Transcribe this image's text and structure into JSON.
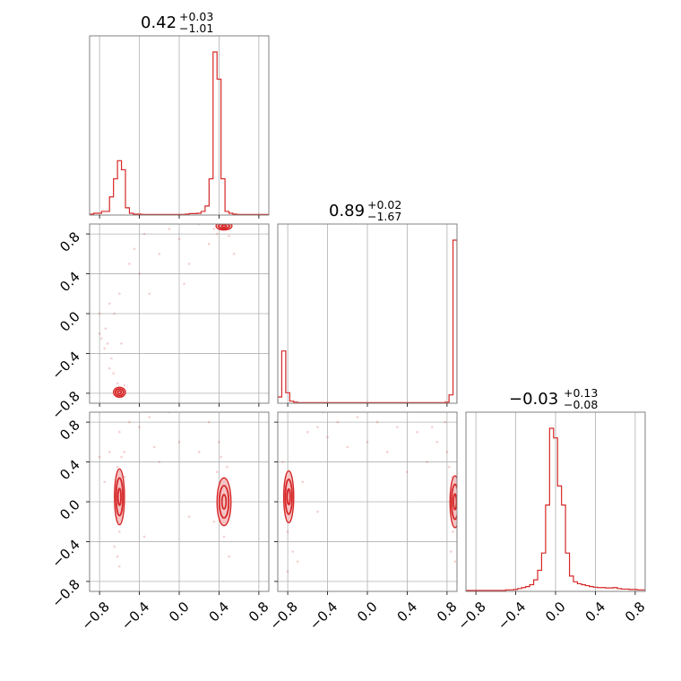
{
  "colors": {
    "accent": "#d62728",
    "contour_fill": "#f4c4c4",
    "grid": "#b0b0b0",
    "frame": "#808080"
  },
  "chart_data": {
    "type": "corner",
    "range": [
      -0.9,
      0.9
    ],
    "ticks": [
      -0.8,
      -0.4,
      0.0,
      0.4,
      0.8
    ],
    "tick_labels": [
      "−0.8",
      "−0.4",
      "0.0",
      "0.4",
      "0.8"
    ],
    "grid": true,
    "parameters": [
      {
        "index": 0,
        "median": "0.42",
        "plus": "+0.03",
        "minus": "−1.01"
      },
      {
        "index": 1,
        "median": "0.89",
        "plus": "+0.02",
        "minus": "−1.67"
      },
      {
        "index": 2,
        "median": "−0.03",
        "plus": "+0.13",
        "minus": "−0.08"
      }
    ],
    "histograms": [
      {
        "param": 0,
        "bin_edges": [
          -0.9,
          -0.86,
          -0.82,
          -0.78,
          -0.74,
          -0.7,
          -0.66,
          -0.62,
          -0.58,
          -0.54,
          -0.5,
          -0.46,
          -0.42,
          -0.38,
          -0.34,
          -0.3,
          -0.26,
          -0.22,
          -0.18,
          -0.14,
          -0.1,
          -0.06,
          -0.02,
          0.02,
          0.06,
          0.1,
          0.14,
          0.18,
          0.22,
          0.26,
          0.3,
          0.34,
          0.38,
          0.42,
          0.46,
          0.5,
          0.54,
          0.58,
          0.62,
          0.66,
          0.7,
          0.74,
          0.78,
          0.82,
          0.86,
          0.9
        ],
        "counts": [
          0.005,
          0.01,
          0.01,
          0.02,
          0.02,
          0.1,
          0.2,
          0.3,
          0.25,
          0.04,
          0.01,
          0.005,
          0.005,
          0.003,
          0.003,
          0.003,
          0.003,
          0.003,
          0.003,
          0.003,
          0.003,
          0.003,
          0.003,
          0.003,
          0.005,
          0.008,
          0.008,
          0.01,
          0.02,
          0.05,
          0.2,
          0.9,
          0.75,
          0.2,
          0.02,
          0.01,
          0.005,
          0.003,
          0.003,
          0.003,
          0.003,
          0.003,
          0.003,
          0.003,
          0.003
        ]
      },
      {
        "param": 1,
        "bin_edges": [
          -0.9,
          -0.86,
          -0.82,
          -0.78,
          -0.74,
          -0.7,
          -0.66,
          -0.62,
          -0.58,
          -0.54,
          -0.5,
          -0.46,
          -0.42,
          -0.38,
          -0.34,
          -0.3,
          -0.26,
          -0.22,
          -0.18,
          -0.14,
          -0.1,
          -0.06,
          -0.02,
          0.02,
          0.06,
          0.1,
          0.14,
          0.18,
          0.22,
          0.26,
          0.3,
          0.34,
          0.38,
          0.42,
          0.46,
          0.5,
          0.54,
          0.58,
          0.62,
          0.66,
          0.7,
          0.74,
          0.78,
          0.82,
          0.86,
          0.9
        ],
        "counts": [
          0.03,
          0.25,
          0.05,
          0.01,
          0.005,
          0.003,
          0.003,
          0.003,
          0.003,
          0.003,
          0.003,
          0.003,
          0.003,
          0.003,
          0.003,
          0.003,
          0.003,
          0.003,
          0.003,
          0.003,
          0.003,
          0.003,
          0.003,
          0.003,
          0.003,
          0.003,
          0.003,
          0.003,
          0.003,
          0.003,
          0.003,
          0.003,
          0.003,
          0.003,
          0.003,
          0.003,
          0.003,
          0.003,
          0.003,
          0.003,
          0.003,
          0.003,
          0.005,
          0.04,
          0.78
        ]
      },
      {
        "param": 2,
        "bin_edges": [
          -0.9,
          -0.86,
          -0.82,
          -0.78,
          -0.74,
          -0.7,
          -0.66,
          -0.62,
          -0.58,
          -0.54,
          -0.5,
          -0.46,
          -0.42,
          -0.38,
          -0.34,
          -0.3,
          -0.26,
          -0.22,
          -0.18,
          -0.14,
          -0.1,
          -0.06,
          -0.02,
          0.02,
          0.06,
          0.1,
          0.14,
          0.18,
          0.22,
          0.26,
          0.3,
          0.34,
          0.38,
          0.42,
          0.46,
          0.5,
          0.54,
          0.58,
          0.62,
          0.66,
          0.7,
          0.74,
          0.78,
          0.82,
          0.86,
          0.9
        ],
        "counts": [
          0.005,
          0.005,
          0.005,
          0.005,
          0.005,
          0.005,
          0.005,
          0.005,
          0.005,
          0.005,
          0.008,
          0.008,
          0.01,
          0.015,
          0.02,
          0.025,
          0.035,
          0.06,
          0.11,
          0.2,
          0.45,
          0.85,
          0.8,
          0.55,
          0.45,
          0.2,
          0.08,
          0.05,
          0.04,
          0.035,
          0.03,
          0.025,
          0.022,
          0.02,
          0.02,
          0.018,
          0.018,
          0.02,
          0.015,
          0.012,
          0.012,
          0.01,
          0.01,
          0.008,
          0.008
        ]
      }
    ],
    "pairs": [
      {
        "x_param": 0,
        "y_param": 1,
        "modes": [
          {
            "cx": 0.45,
            "cy": 0.88,
            "sx": 0.04,
            "sy": 0.02
          },
          {
            "cx": -0.6,
            "cy": -0.79,
            "sx": 0.03,
            "sy": 0.025
          }
        ],
        "samples": [
          [
            -0.78,
            -0.25
          ],
          [
            -0.7,
            -0.55
          ],
          [
            -0.72,
            -0.3
          ],
          [
            -0.66,
            -0.6
          ],
          [
            -0.74,
            -0.15
          ],
          [
            -0.68,
            -0.45
          ],
          [
            -0.8,
            0.0
          ],
          [
            -0.75,
            -0.35
          ],
          [
            -0.62,
            -0.7
          ],
          [
            -0.55,
            -0.72
          ],
          [
            -0.5,
            0.5
          ],
          [
            -0.35,
            0.8
          ],
          [
            -0.1,
            0.85
          ],
          [
            0.2,
            0.9
          ],
          [
            0.3,
            0.7
          ],
          [
            -0.4,
            0.4
          ],
          [
            -0.2,
            0.6
          ],
          [
            0.1,
            0.5
          ],
          [
            -0.6,
            0.2
          ],
          [
            -0.3,
            0.2
          ],
          [
            0.05,
            0.3
          ],
          [
            0.35,
            0.85
          ],
          [
            0.38,
            0.8
          ],
          [
            0.5,
            0.78
          ],
          [
            0.55,
            0.6
          ],
          [
            0.25,
            0.95
          ],
          [
            -0.65,
            0.0
          ],
          [
            -0.7,
            0.1
          ],
          [
            -0.8,
            -0.2
          ],
          [
            -0.58,
            -0.3
          ],
          [
            -0.45,
            0.65
          ],
          [
            0.0,
            0.75
          ]
        ]
      },
      {
        "x_param": 0,
        "y_param": 2,
        "modes": [
          {
            "cx": -0.6,
            "cy": 0.05,
            "sx": 0.025,
            "sy": 0.14
          },
          {
            "cx": 0.45,
            "cy": 0.0,
            "sx": 0.035,
            "sy": 0.12
          }
        ],
        "samples": [
          [
            -0.62,
            0.35
          ],
          [
            -0.58,
            0.45
          ],
          [
            -0.6,
            -0.3
          ],
          [
            -0.65,
            -0.45
          ],
          [
            -0.55,
            0.5
          ],
          [
            -0.6,
            0.7
          ],
          [
            -0.5,
            0.8
          ],
          [
            -0.7,
            0.5
          ],
          [
            -0.8,
            0.45
          ],
          [
            -0.4,
            0.75
          ],
          [
            -0.3,
            0.85
          ],
          [
            -0.1,
            0.9
          ],
          [
            0.1,
            0.95
          ],
          [
            0.3,
            0.8
          ],
          [
            0.4,
            0.6
          ],
          [
            0.42,
            0.45
          ],
          [
            0.45,
            -0.35
          ],
          [
            0.5,
            -0.55
          ],
          [
            0.38,
            0.3
          ],
          [
            0.35,
            -0.2
          ],
          [
            -0.6,
            -0.65
          ],
          [
            -0.62,
            -0.55
          ],
          [
            0.0,
            0.6
          ],
          [
            -0.2,
            0.4
          ],
          [
            0.2,
            0.5
          ],
          [
            -0.75,
            0.2
          ],
          [
            0.4,
            -0.1
          ],
          [
            0.48,
            0.35
          ],
          [
            -0.55,
            0.25
          ],
          [
            -0.35,
            -0.35
          ],
          [
            0.1,
            -0.15
          ],
          [
            -0.25,
            0.55
          ]
        ]
      },
      {
        "x_param": 1,
        "y_param": 2,
        "modes": [
          {
            "cx": -0.79,
            "cy": 0.05,
            "sx": 0.025,
            "sy": 0.13
          },
          {
            "cx": 0.88,
            "cy": 0.0,
            "sx": 0.025,
            "sy": 0.13
          }
        ],
        "samples": [
          [
            -0.78,
            0.3
          ],
          [
            -0.8,
            -0.3
          ],
          [
            -0.75,
            -0.5
          ],
          [
            -0.7,
            -0.6
          ],
          [
            -0.6,
            0.7
          ],
          [
            -0.5,
            0.75
          ],
          [
            -0.3,
            0.8
          ],
          [
            -0.1,
            0.85
          ],
          [
            0.1,
            0.8
          ],
          [
            0.3,
            0.75
          ],
          [
            0.5,
            0.7
          ],
          [
            0.7,
            0.6
          ],
          [
            0.8,
            0.5
          ],
          [
            0.82,
            0.35
          ],
          [
            0.85,
            0.25
          ],
          [
            0.86,
            -0.3
          ],
          [
            0.84,
            -0.5
          ],
          [
            -0.85,
            0.4
          ],
          [
            0.0,
            0.6
          ],
          [
            -0.2,
            0.55
          ],
          [
            0.2,
            0.5
          ],
          [
            -0.4,
            0.65
          ],
          [
            0.6,
            0.4
          ],
          [
            -0.8,
            -0.7
          ],
          [
            0.88,
            -0.6
          ],
          [
            -0.65,
            0.2
          ],
          [
            0.4,
            0.3
          ],
          [
            -0.5,
            -0.1
          ],
          [
            0.65,
            0.75
          ],
          [
            0.78,
            0.8
          ],
          [
            -0.45,
            0.9
          ],
          [
            0.05,
            0.95
          ]
        ]
      }
    ]
  }
}
